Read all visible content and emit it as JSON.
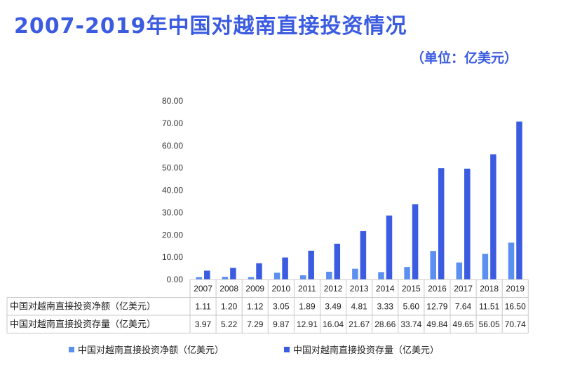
{
  "header": {
    "title": "2007-2019年中国对越南直接投资情况",
    "unit": "（单位：亿美元）"
  },
  "chart_data": {
    "type": "bar",
    "title": "2007-2019年中国对越南直接投资情况",
    "categories": [
      "2007",
      "2008",
      "2009",
      "2010",
      "2011",
      "2012",
      "2013",
      "2014",
      "2015",
      "2016",
      "2017",
      "2018",
      "2019"
    ],
    "series": [
      {
        "name": "中国对越南直接投资净额（亿美元）",
        "values": [
          1.11,
          1.2,
          1.12,
          3.05,
          1.89,
          3.49,
          4.81,
          3.33,
          5.6,
          12.79,
          7.64,
          11.51,
          16.5
        ],
        "labels": [
          "1.11",
          "1.20",
          "1.12",
          "3.05",
          "1.89",
          "3.49",
          "4.81",
          "3.33",
          "5.60",
          "12.79",
          "7.64",
          "11.51",
          "16.50"
        ],
        "color": "#5b8ff0"
      },
      {
        "name": "中国对越南直接投资存量（亿美元）",
        "values": [
          3.97,
          5.22,
          7.29,
          9.87,
          12.91,
          16.04,
          21.67,
          28.66,
          33.74,
          49.84,
          49.65,
          56.05,
          70.74
        ],
        "labels": [
          "3.97",
          "5.22",
          "7.29",
          "9.87",
          "12.91",
          "16.04",
          "21.67",
          "28.66",
          "33.74",
          "49.84",
          "49.65",
          "56.05",
          "70.74"
        ],
        "color": "#3b5be0"
      }
    ],
    "ylim": [
      0,
      80
    ],
    "yticks": [
      "0.00",
      "10.00",
      "20.00",
      "30.00",
      "40.00",
      "50.00",
      "60.00",
      "70.00",
      "80.00"
    ],
    "grid": false,
    "legend": "bottom"
  }
}
